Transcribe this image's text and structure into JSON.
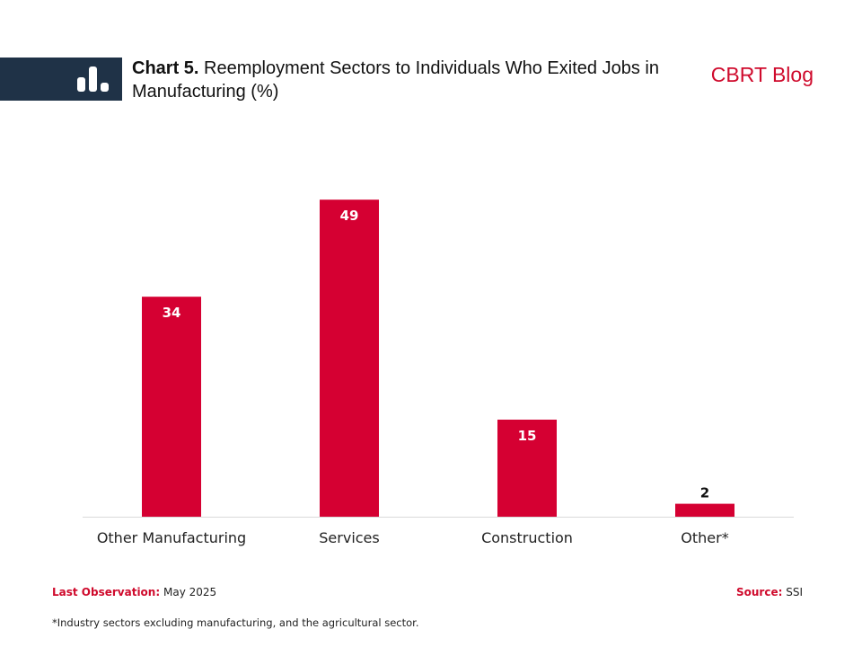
{
  "header": {
    "chart_number": "Chart 5.",
    "title": "Reemployment Sectors to Individuals Who Exited Jobs in Manufacturing (%)",
    "brand": "CBRT Blog",
    "icon": "bar-chart-icon"
  },
  "chart_data": {
    "type": "bar",
    "categories": [
      "Other Manufacturing",
      "Services",
      "Construction",
      "Other*"
    ],
    "values": [
      34,
      49,
      15,
      2
    ],
    "data_labels": [
      "34",
      "49",
      "15",
      "2"
    ],
    "ylim": [
      0,
      55
    ],
    "grid": false,
    "color": "#d50032"
  },
  "footer": {
    "last_obs_label": "Last Observation:",
    "last_obs_value": "May 2025",
    "source_label": "Source:",
    "source_value": "SSI",
    "note": "*Industry sectors excluding manufacturing, and the agricultural sector."
  }
}
